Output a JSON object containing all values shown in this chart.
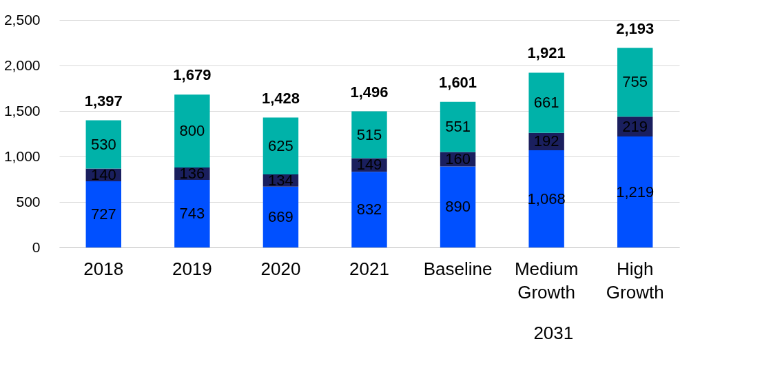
{
  "chart_data": {
    "type": "bar",
    "stacked": true,
    "categories": [
      "2018",
      "2019",
      "2020",
      "2021",
      "Baseline",
      "Medium Growth",
      "High Growth"
    ],
    "series": [
      {
        "color": "#0050ff",
        "values": [
          727,
          743,
          669,
          832,
          890,
          1068,
          1219
        ],
        "value_labels": [
          "727",
          "743",
          "669",
          "832",
          "890",
          "1,068",
          "1,219"
        ]
      },
      {
        "color": "#1a1f5e",
        "values": [
          140,
          136,
          134,
          149,
          160,
          192,
          219
        ]
      },
      {
        "color": "#00b2a9",
        "values": [
          530,
          800,
          625,
          515,
          551,
          661,
          755
        ]
      }
    ],
    "totals": [
      "1,397",
      "1,679",
      "1,428",
      "1,496",
      "1,601",
      "1,921",
      "2,193"
    ],
    "data_labels": true,
    "ylim": [
      0,
      2500
    ],
    "yticks": [
      0,
      500,
      {
        "value": 1000,
        "label": "1,000"
      },
      {
        "value": 1500,
        "label": "1,500"
      },
      {
        "value": 2000,
        "label": "2,000"
      },
      {
        "value": 2500,
        "label": "2,500"
      }
    ],
    "grid": "y",
    "annotations": [
      "2031"
    ]
  }
}
